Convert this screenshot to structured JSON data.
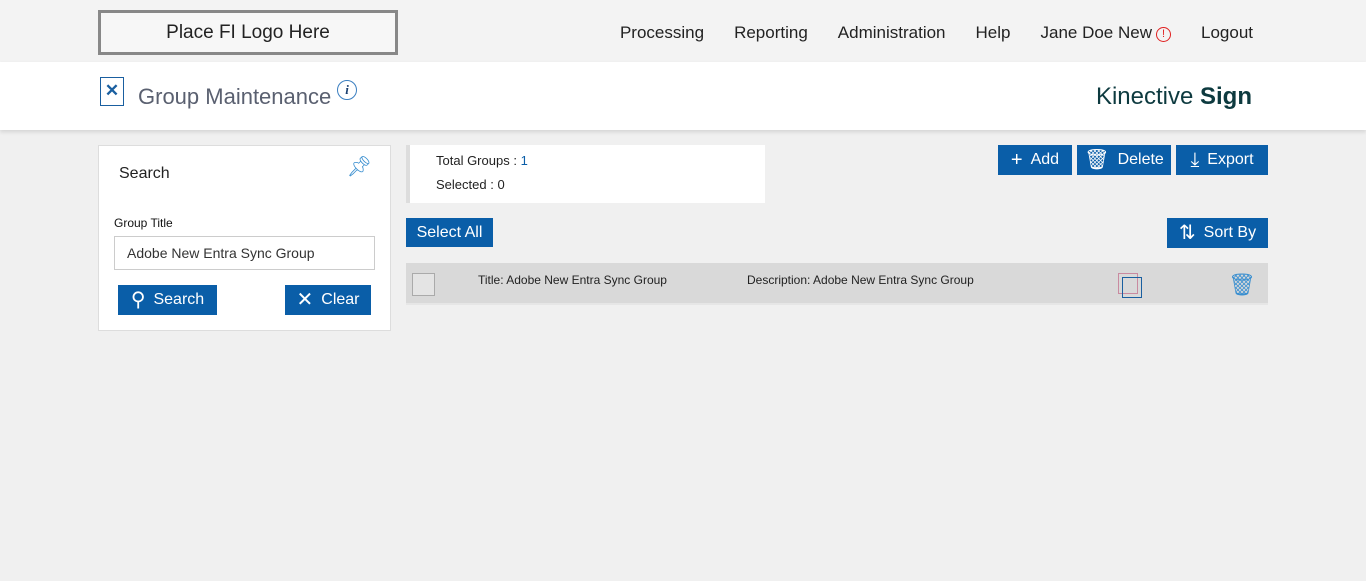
{
  "header": {
    "logo": "Place FI Logo Here",
    "nav": [
      "Processing",
      "Reporting",
      "Administration",
      "Help",
      "Jane Doe New",
      "Logout"
    ],
    "alert_icon": "!"
  },
  "page": {
    "title": "Group Maintenance",
    "brand_light": "Kinective",
    "brand_bold": "Sign"
  },
  "search": {
    "heading": "Search",
    "field_label": "Group Title",
    "field_value": "Adobe New Entra Sync Group",
    "search_label": "Search",
    "clear_label": "Clear"
  },
  "stats": {
    "total_label": "Total Groups :",
    "total": "1",
    "selected_label": "Selected :",
    "selected": "0"
  },
  "toolbar": {
    "add": "Add",
    "delete": "Delete",
    "export": "Export",
    "select_all": "Select All",
    "sort_by": "Sort By"
  },
  "rows": [
    {
      "title": "Title:  Adobe New Entra Sync Group",
      "description": "Description: Adobe New Entra Sync Group"
    }
  ],
  "colors": {
    "primary": "#0a5ea8",
    "alert": "#e02020"
  }
}
